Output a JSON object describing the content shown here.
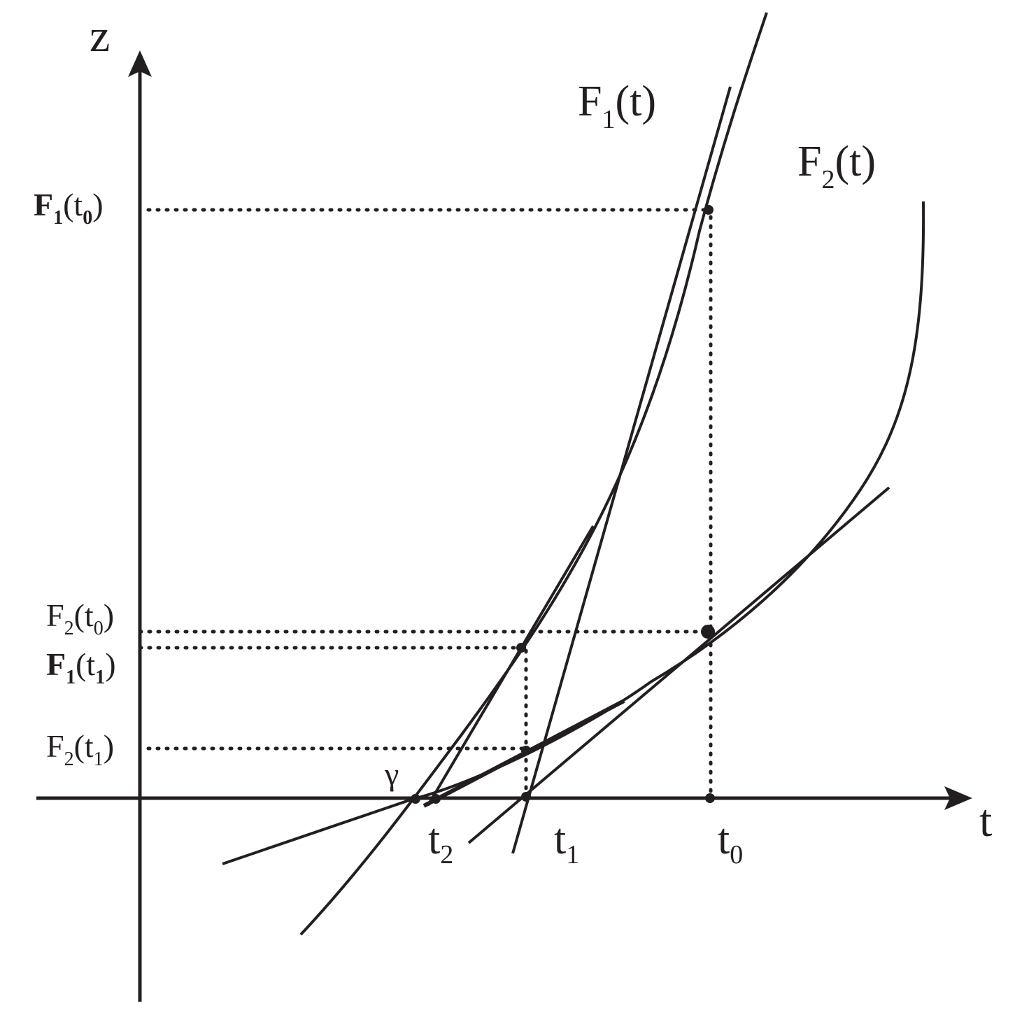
{
  "axes": {
    "vertical": "z",
    "horizontal": "t"
  },
  "curves": {
    "f1": {
      "name": "F",
      "index": "1",
      "arg": "(t)"
    },
    "f2": {
      "name": "F",
      "index": "2",
      "arg": "(t)"
    }
  },
  "z_labels": {
    "f1_t0": {
      "name": "F",
      "index": "1",
      "open": "(t",
      "sub": "0",
      "close": ")"
    },
    "f2_t0": {
      "name": "F",
      "index": "2",
      "open": "(t",
      "sub": "0",
      "close": ")"
    },
    "f1_t1": {
      "name": "F",
      "index": "1",
      "open": "(t",
      "sub": "1",
      "close": ")"
    },
    "f2_t1": {
      "name": "F",
      "index": "2",
      "open": "(t",
      "sub": "1",
      "close": ")"
    }
  },
  "t_labels": {
    "t0": {
      "main": "t",
      "sub": "0"
    },
    "t1": {
      "main": "t",
      "sub": "1"
    },
    "t2": {
      "main": "t",
      "sub": "2"
    }
  },
  "root_label": "γ"
}
